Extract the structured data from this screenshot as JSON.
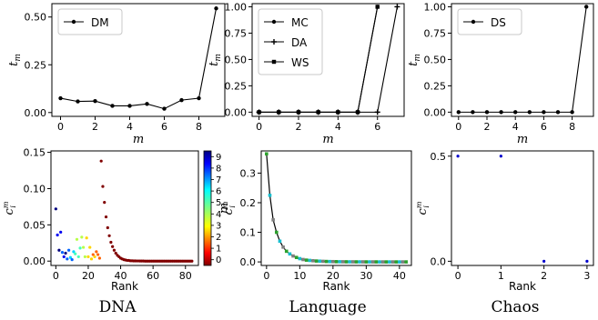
{
  "figure": {
    "captions": [
      "DNA",
      "Language",
      "Chaos"
    ]
  },
  "chart_data": [
    {
      "id": "dm",
      "type": "line",
      "xlabel": "m",
      "ylabel": "t_m",
      "xlim": [
        -0.5,
        9.5
      ],
      "ylim": [
        -0.02,
        0.57
      ],
      "xticks": [
        0,
        2,
        4,
        6,
        8
      ],
      "yticks": [
        0.0,
        0.25,
        0.5
      ],
      "ytick_labels": [
        "0.00",
        "0.25",
        "0.50"
      ],
      "legend": "top-left",
      "series": [
        {
          "name": "DM",
          "marker": "dot",
          "x": [
            0,
            1,
            2,
            3,
            4,
            5,
            6,
            7,
            8,
            9
          ],
          "y": [
            0.075,
            0.058,
            0.06,
            0.035,
            0.035,
            0.045,
            0.02,
            0.065,
            0.075,
            0.545
          ]
        }
      ]
    },
    {
      "id": "mc",
      "type": "line",
      "xlabel": "m",
      "ylabel": "t_m",
      "xlim": [
        -0.35,
        7.35
      ],
      "ylim": [
        -0.04,
        1.03
      ],
      "xticks": [
        0,
        2,
        4,
        6
      ],
      "yticks": [
        0.0,
        0.25,
        0.5,
        0.75,
        1.0
      ],
      "ytick_labels": [
        "0.00",
        "0.25",
        "0.50",
        "0.75",
        "1.00"
      ],
      "legend": "top-left",
      "series": [
        {
          "name": "MC",
          "marker": "dot",
          "x": [
            0,
            1,
            2,
            3,
            4,
            5,
            6
          ],
          "y": [
            0,
            0,
            0,
            0,
            0,
            0,
            1
          ]
        },
        {
          "name": "DA",
          "marker": "plus",
          "x": [
            0,
            1,
            2,
            3,
            4,
            5,
            6,
            7
          ],
          "y": [
            0,
            0,
            0,
            0,
            0,
            0,
            0,
            1
          ]
        },
        {
          "name": "WS",
          "marker": "square",
          "x": [
            0,
            1,
            2,
            3,
            4,
            5,
            6
          ],
          "y": [
            0,
            0,
            0,
            0,
            0,
            0,
            1
          ]
        }
      ]
    },
    {
      "id": "ds",
      "type": "line",
      "xlabel": "m",
      "ylabel": "t_m",
      "xlim": [
        -0.5,
        9.5
      ],
      "ylim": [
        -0.04,
        1.03
      ],
      "xticks": [
        0,
        2,
        4,
        6,
        8
      ],
      "yticks": [
        0.0,
        0.25,
        0.5,
        0.75,
        1.0
      ],
      "ytick_labels": [
        "0.00",
        "0.25",
        "0.50",
        "0.75",
        "1.00"
      ],
      "legend": "top-left",
      "series": [
        {
          "name": "DS",
          "marker": "dot",
          "x": [
            0,
            1,
            2,
            3,
            4,
            5,
            6,
            7,
            8,
            9
          ],
          "y": [
            0,
            0,
            0,
            0,
            0,
            0,
            0,
            0,
            0,
            1
          ]
        }
      ]
    },
    {
      "id": "dna",
      "type": "scatter",
      "xlabel": "Rank",
      "ylabel": "c_i^m",
      "colorbar_label": "m",
      "colorbar_ticks": [
        0,
        1,
        2,
        3,
        4,
        5,
        6,
        7,
        8,
        9
      ],
      "xlim": [
        -3,
        88
      ],
      "ylim": [
        -0.006,
        0.152
      ],
      "xticks": [
        0,
        20,
        40,
        60,
        80
      ],
      "yticks": [
        0.0,
        0.05,
        0.1,
        0.15
      ],
      "ytick_labels": [
        "0.00",
        "0.05",
        "0.10",
        "0.15"
      ],
      "points": [
        [
          0,
          0.072,
          0
        ],
        [
          1,
          0.036,
          1
        ],
        [
          2,
          0.015,
          0
        ],
        [
          3,
          0.04,
          1
        ],
        [
          4,
          0.012,
          2
        ],
        [
          5,
          0.006,
          1
        ],
        [
          6,
          0.011,
          0
        ],
        [
          7,
          0.003,
          2
        ],
        [
          8,
          0.015,
          2
        ],
        [
          9,
          0.005,
          3
        ],
        [
          10,
          0.002,
          2
        ],
        [
          11,
          0.013,
          3
        ],
        [
          12,
          0.01,
          4
        ],
        [
          13,
          0.03,
          5
        ],
        [
          14,
          0.006,
          4
        ],
        [
          15,
          0.018,
          4
        ],
        [
          16,
          0.033,
          5
        ],
        [
          17,
          0.019,
          5
        ],
        [
          18,
          0.006,
          5
        ],
        [
          19,
          0.032,
          6
        ],
        [
          20,
          0.006,
          6
        ],
        [
          21,
          0.019,
          6
        ],
        [
          22,
          0.003,
          6
        ],
        [
          23,
          0.009,
          7
        ],
        [
          24,
          0.006,
          6
        ],
        [
          25,
          0.013,
          7
        ],
        [
          26,
          0.009,
          7
        ],
        [
          27,
          0.004,
          7
        ],
        [
          28,
          0.138,
          9
        ],
        [
          29,
          0.103,
          9
        ],
        [
          30,
          0.081,
          9
        ],
        [
          31,
          0.061,
          9
        ],
        [
          32,
          0.046,
          9
        ],
        [
          33,
          0.035,
          9
        ],
        [
          34,
          0.026,
          9
        ],
        [
          35,
          0.02,
          9
        ],
        [
          36,
          0.015,
          9
        ],
        [
          37,
          0.011,
          9
        ],
        [
          38,
          0.008,
          9
        ],
        [
          39,
          0.006,
          9
        ],
        [
          40,
          0.004,
          9
        ],
        [
          41,
          0.003,
          9
        ],
        [
          42,
          0.002,
          9
        ],
        [
          43,
          0.0015,
          9
        ],
        [
          44,
          0.001,
          9
        ],
        [
          45,
          0.001,
          9
        ],
        [
          46,
          0.0005,
          9
        ],
        [
          47,
          0.0005,
          9
        ],
        [
          48,
          0.0003,
          9
        ],
        [
          49,
          0.0003,
          9
        ],
        [
          50,
          0.0002,
          9
        ],
        [
          51,
          0.0002,
          9
        ],
        [
          52,
          0.0001,
          9
        ],
        [
          53,
          0.0001,
          9
        ],
        [
          54,
          0.0001,
          9
        ],
        [
          55,
          0,
          9
        ],
        [
          56,
          0,
          9
        ],
        [
          57,
          0,
          9
        ],
        [
          58,
          0,
          9
        ],
        [
          59,
          0,
          9
        ],
        [
          60,
          0,
          9
        ],
        [
          61,
          0,
          9
        ],
        [
          62,
          0,
          9
        ],
        [
          63,
          0,
          9
        ],
        [
          64,
          0,
          9
        ],
        [
          65,
          0,
          9
        ],
        [
          66,
          0,
          9
        ],
        [
          67,
          0,
          9
        ],
        [
          68,
          0,
          9
        ],
        [
          69,
          0,
          9
        ],
        [
          70,
          0,
          9
        ],
        [
          71,
          0,
          9
        ],
        [
          72,
          0,
          9
        ],
        [
          73,
          0,
          9
        ],
        [
          74,
          0,
          9
        ],
        [
          75,
          0,
          9
        ],
        [
          76,
          0,
          9
        ],
        [
          77,
          0,
          9
        ],
        [
          78,
          0,
          9
        ],
        [
          79,
          0,
          9
        ],
        [
          80,
          0,
          9
        ],
        [
          81,
          0,
          9
        ],
        [
          82,
          0,
          9
        ],
        [
          83,
          0,
          9
        ],
        [
          84,
          0,
          9
        ]
      ]
    },
    {
      "id": "language",
      "type": "scatter",
      "xlabel": "Rank",
      "ylabel": "c_i^m",
      "xlim": [
        -1.6,
        43.6
      ],
      "ylim": [
        -0.012,
        0.375
      ],
      "xticks": [
        0,
        10,
        20,
        30,
        40
      ],
      "yticks": [
        0.0,
        0.1,
        0.2,
        0.3
      ],
      "ytick_labels": [
        "0.0",
        "0.1",
        "0.2",
        "0.3"
      ],
      "line": {
        "x": [
          0,
          1,
          2,
          3,
          4,
          5,
          6,
          7,
          8,
          9,
          10,
          11,
          12,
          13,
          14,
          15,
          16,
          17,
          18,
          19,
          20,
          21,
          22,
          23,
          24,
          25,
          26,
          27,
          28,
          29,
          30,
          31,
          32,
          33,
          34,
          35,
          36,
          37,
          38,
          39,
          40,
          41,
          42
        ],
        "y": [
          0.365,
          0.225,
          0.142,
          0.1,
          0.07,
          0.05,
          0.036,
          0.027,
          0.02,
          0.015,
          0.011,
          0.008,
          0.006,
          0.005,
          0.004,
          0.003,
          0.0025,
          0.002,
          0.0015,
          0.0012,
          0.001,
          0.0008,
          0.0006,
          0.0005,
          0.0004,
          0.0003,
          0.0003,
          0.0002,
          0.0002,
          0.0002,
          0.0001,
          0.0001,
          0.0001,
          0.0001,
          0,
          0,
          0,
          0,
          0,
          0,
          0,
          0,
          0
        ]
      },
      "marker_colors": [
        "#2ca02c",
        "#17becf",
        "#7f7f7f"
      ]
    },
    {
      "id": "chaos",
      "type": "scatter",
      "xlabel": "Rank",
      "ylabel": "c_i^m",
      "xlim": [
        -0.15,
        3.15
      ],
      "ylim": [
        -0.02,
        0.525
      ],
      "xticks": [
        0,
        1,
        2,
        3
      ],
      "yticks": [
        0.0,
        0.5
      ],
      "ytick_labels": [
        "0.0",
        "0.5"
      ],
      "points": [
        [
          0,
          0.5
        ],
        [
          1,
          0.5
        ],
        [
          2,
          0
        ],
        [
          3,
          0
        ]
      ]
    }
  ]
}
